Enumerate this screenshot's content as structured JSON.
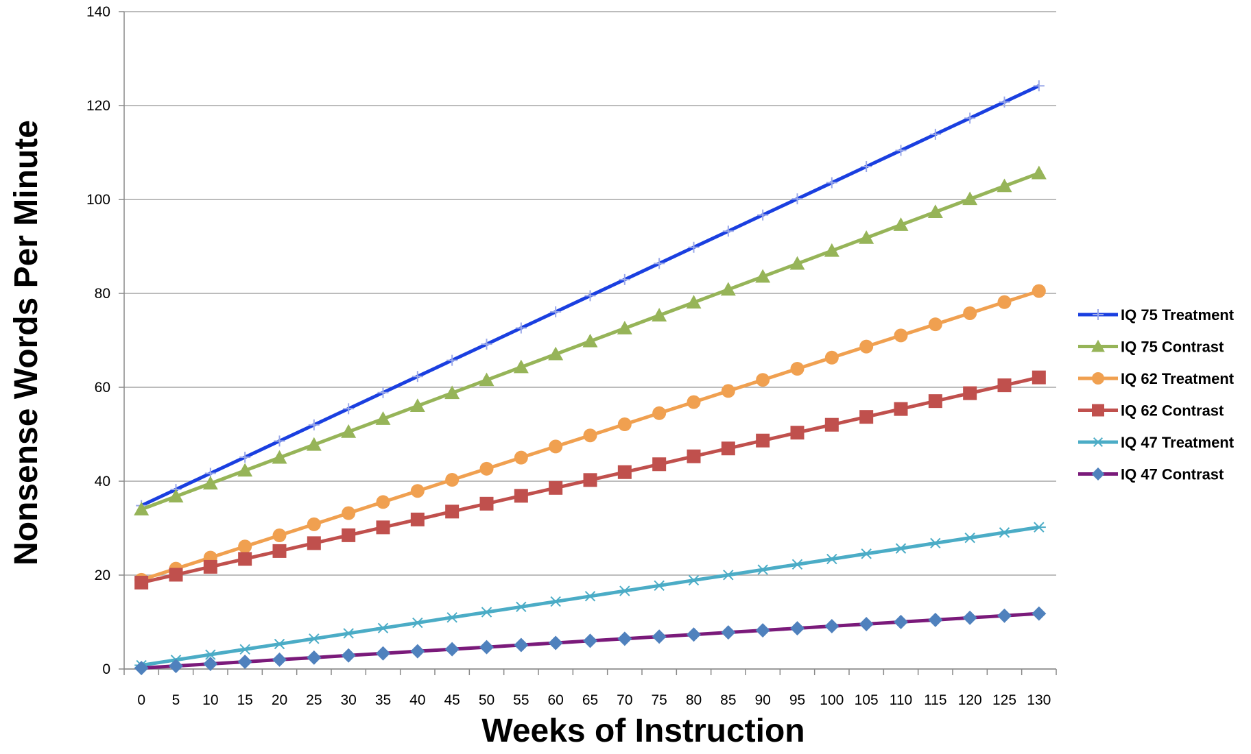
{
  "chart_data": {
    "type": "line",
    "title": "",
    "xlabel": "Weeks of Instruction",
    "ylabel": "Nonsense Words Per Minute",
    "x": [
      0,
      5,
      10,
      15,
      20,
      25,
      30,
      35,
      40,
      45,
      50,
      55,
      60,
      65,
      70,
      75,
      80,
      85,
      90,
      95,
      100,
      105,
      110,
      115,
      120,
      125,
      130
    ],
    "ylim": [
      0,
      140
    ],
    "yticks": [
      0,
      20,
      40,
      60,
      80,
      100,
      120,
      140
    ],
    "grid": true,
    "legend": "right",
    "series": [
      {
        "name": "IQ 75 Treatment",
        "color": "#1a3fe0",
        "marker": "plus",
        "start": 34.8,
        "end": 124.2
      },
      {
        "name": "IQ 75 Contrast",
        "color": "#96b458",
        "marker": "triangle",
        "start": 34.0,
        "end": 105.6
      },
      {
        "name": "IQ 62 Treatment",
        "color": "#f0a050",
        "marker": "circle",
        "start": 19.0,
        "end": 80.5
      },
      {
        "name": "IQ 62 Contrast",
        "color": "#c0504d",
        "marker": "square",
        "start": 18.4,
        "end": 62.1
      },
      {
        "name": "IQ 47 Treatment",
        "color": "#4bacc6",
        "marker": "star",
        "start": 0.8,
        "end": 30.2
      },
      {
        "name": "IQ 47 Contrast",
        "color": "#7a1a7a",
        "marker": "diamond",
        "marker_color": "#4f81bd",
        "start": 0.2,
        "end": 11.8
      }
    ]
  }
}
